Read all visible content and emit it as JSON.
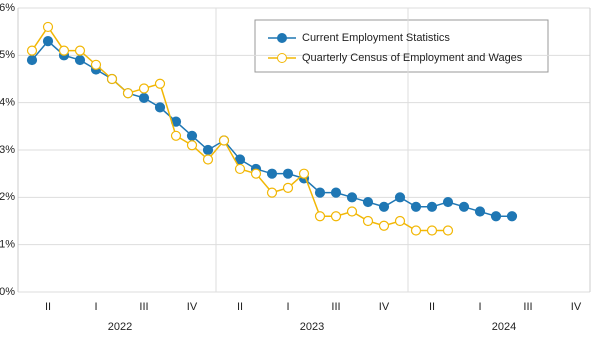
{
  "chart_data": {
    "type": "line",
    "categories": [
      null,
      "II",
      null,
      null,
      "I",
      null,
      null,
      "III",
      null,
      null,
      "IV",
      null,
      null,
      "II",
      null,
      null,
      "I",
      null,
      null,
      "III",
      null,
      null,
      "IV",
      null,
      null,
      "II",
      null,
      null,
      "I",
      null,
      null,
      "III",
      null,
      null,
      "IV"
    ],
    "years": [
      "2022",
      "2023",
      "2024"
    ],
    "series": [
      {
        "name": "Current Employment Statistics",
        "color": "#1f77b4",
        "marker": "filled",
        "values": [
          4.9,
          5.3,
          5.0,
          4.9,
          4.7,
          4.5,
          4.2,
          4.1,
          3.9,
          3.6,
          3.3,
          3.0,
          3.2,
          2.8,
          2.6,
          2.5,
          2.5,
          2.4,
          2.1,
          2.1,
          2.0,
          1.9,
          1.8,
          2.0,
          1.8,
          1.8,
          1.9,
          1.8,
          1.7,
          1.6,
          1.6,
          null,
          null,
          null,
          null
        ]
      },
      {
        "name": "Quarterly Census of Employment and Wages",
        "color": "#f2b705",
        "marker": "open",
        "values": [
          5.1,
          5.6,
          5.1,
          5.1,
          4.8,
          4.5,
          4.2,
          4.3,
          4.4,
          3.3,
          3.1,
          2.8,
          3.2,
          2.6,
          2.5,
          2.1,
          2.2,
          2.5,
          1.6,
          1.6,
          1.7,
          1.5,
          1.4,
          1.5,
          1.3,
          1.3,
          1.3,
          null,
          null,
          null,
          null,
          null,
          null,
          null,
          null
        ]
      }
    ],
    "ylim": [
      0,
      6
    ],
    "yticks": [
      {
        "value": 0,
        "label": "0%"
      },
      {
        "value": 1,
        "label": "1%"
      },
      {
        "value": 2,
        "label": "2%"
      },
      {
        "value": 3,
        "label": "3%"
      },
      {
        "value": 4,
        "label": "4%"
      },
      {
        "value": 5,
        "label": "5%"
      },
      {
        "value": 6,
        "label": "6%"
      }
    ],
    "grid": true
  }
}
